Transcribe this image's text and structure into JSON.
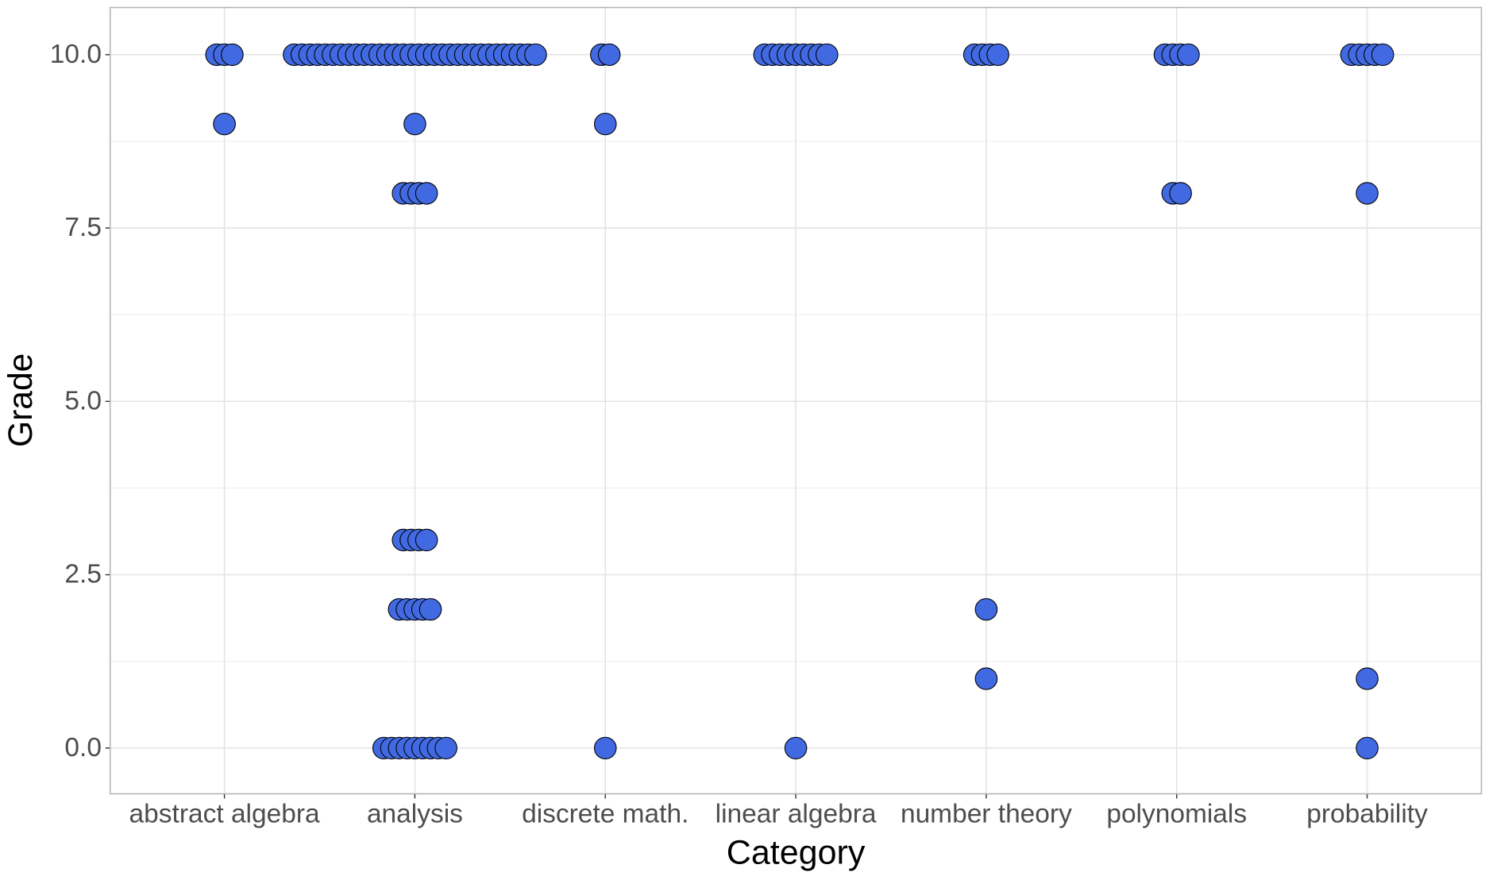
{
  "chart_data": {
    "type": "dotplot",
    "x_label": "Category",
    "y_label": "Grade",
    "categories": [
      "abstract algebra",
      "analysis",
      "discrete math.",
      "linear algebra",
      "number theory",
      "polynomials",
      "probability"
    ],
    "values": [
      [
        10,
        10,
        10,
        9
      ],
      [
        10,
        10,
        10,
        10,
        10,
        10,
        10,
        10,
        10,
        10,
        10,
        10,
        10,
        10,
        10,
        10,
        10,
        10,
        10,
        10,
        10,
        10,
        10,
        10,
        10,
        10,
        10,
        10,
        10,
        10,
        10,
        10,
        9,
        8,
        8,
        8,
        8,
        3,
        3,
        3,
        3,
        2,
        2,
        2,
        2,
        2,
        0,
        0,
        0,
        0,
        0,
        0,
        0,
        0,
        0
      ],
      [
        10,
        10,
        9,
        0
      ],
      [
        10,
        10,
        10,
        10,
        10,
        10,
        10,
        10,
        10,
        0
      ],
      [
        10,
        10,
        10,
        10,
        2,
        1
      ],
      [
        10,
        10,
        10,
        10,
        8,
        8
      ],
      [
        10,
        10,
        10,
        10,
        10,
        8,
        1,
        0
      ]
    ],
    "color": "#4169e1",
    "ylim": [
      -0.66,
      10.68
    ],
    "yticks": [
      {
        "value": 0,
        "label": "0.0"
      },
      {
        "value": 2.5,
        "label": "2.5"
      },
      {
        "value": 5,
        "label": "5.0"
      },
      {
        "value": 7.5,
        "label": "7.5"
      },
      {
        "value": 10,
        "label": "10.0"
      }
    ],
    "grid": true
  }
}
